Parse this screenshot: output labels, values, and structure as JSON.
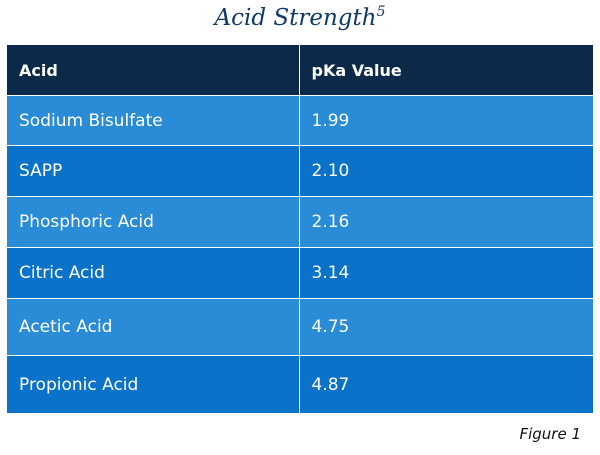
{
  "title": {
    "text": "Acid Strength",
    "superscript": "5"
  },
  "table": {
    "headers": [
      "Acid",
      "pKa Value"
    ],
    "rows": [
      [
        "Sodium Bisulfate",
        "1.99"
      ],
      [
        "SAPP",
        "2.10"
      ],
      [
        "Phosphoric Acid",
        "2.16"
      ],
      [
        "Citric Acid",
        "3.14"
      ],
      [
        "Acetic Acid",
        "4.75"
      ],
      [
        "Propionic Acid",
        "4.87"
      ]
    ]
  },
  "caption": "Figure 1",
  "colors": {
    "title": "#0e3a68",
    "header_bg": "#0b2a49",
    "row_light": "#2a8bd6",
    "row_dark": "#0a72c8"
  }
}
